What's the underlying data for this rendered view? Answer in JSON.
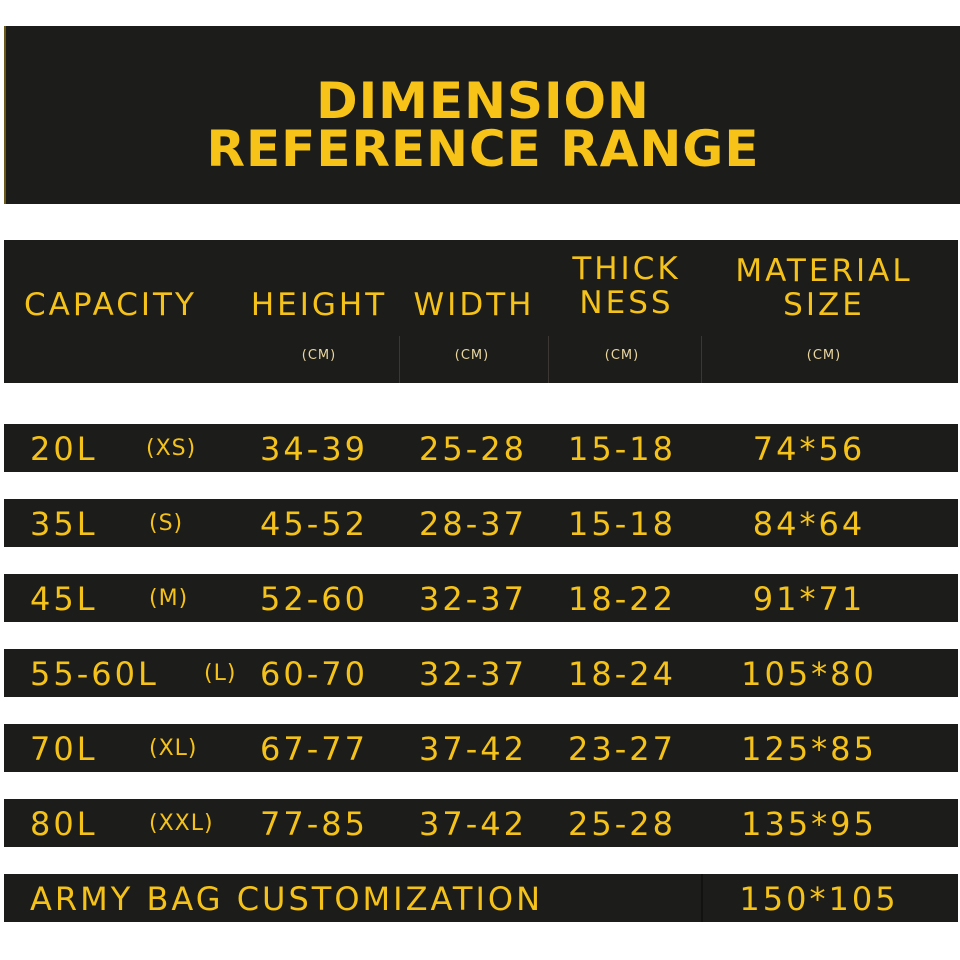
{
  "title": {
    "line1": "DIMENSION",
    "line2": "REFERENCE RANGE"
  },
  "header": {
    "capacity": "CAPACITY",
    "height": "HEIGHT",
    "width": "WIDTH",
    "thick_1": "THICK",
    "thick_2": "NESS",
    "material_1": "MATERIAL",
    "material_2": "SIZE",
    "unit": "(CM)"
  },
  "rows": [
    {
      "capacity": "20L",
      "size": "(XS)",
      "height": "34-39",
      "width": "25-28",
      "thickness": "15-18",
      "material": "74*56"
    },
    {
      "capacity": "35L",
      "size": "(S)",
      "height": "45-52",
      "width": "28-37",
      "thickness": "15-18",
      "material": "84*64"
    },
    {
      "capacity": "45L",
      "size": "(M)",
      "height": "52-60",
      "width": "32-37",
      "thickness": "18-22",
      "material": "91*71"
    },
    {
      "capacity": "55-60L",
      "size": "(L)",
      "height": "60-70",
      "width": "32-37",
      "thickness": "18-24",
      "material": "105*80"
    },
    {
      "capacity": "70L",
      "size": "(XL)",
      "height": "67-77",
      "width": "37-42",
      "thickness": "23-27",
      "material": "125*85"
    },
    {
      "capacity": "80L",
      "size": "(XXL)",
      "height": "77-85",
      "width": "37-42",
      "thickness": "25-28",
      "material": "135*95"
    }
  ],
  "custom_row": {
    "label": "ARMY BAG CUSTOMIZATION",
    "material": "150*105"
  },
  "colors": {
    "background": "#1c1c1a",
    "text": "#f5c21a"
  }
}
